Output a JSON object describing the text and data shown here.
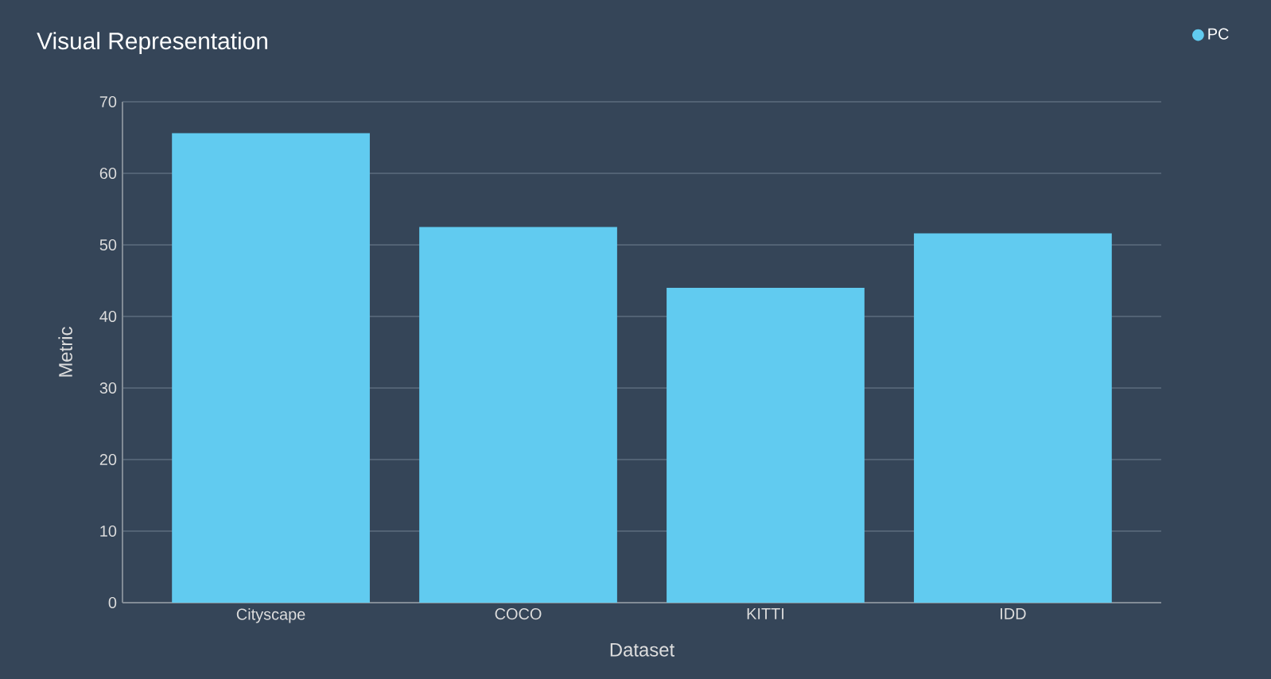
{
  "chart_data": {
    "type": "bar",
    "title": "Visual Representation",
    "xlabel": "Dataset",
    "ylabel": "Metric",
    "categories": [
      "Cityscape",
      "COCO",
      "KITTI",
      "IDD"
    ],
    "series": [
      {
        "name": "PC",
        "color": "#61cbf0",
        "values": [
          65.6,
          52.5,
          44.0,
          51.6
        ]
      }
    ],
    "ylim": [
      0,
      70
    ],
    "yticks": [
      0,
      10,
      20,
      30,
      40,
      50,
      60,
      70
    ],
    "grid": "y",
    "legend": "top right"
  }
}
